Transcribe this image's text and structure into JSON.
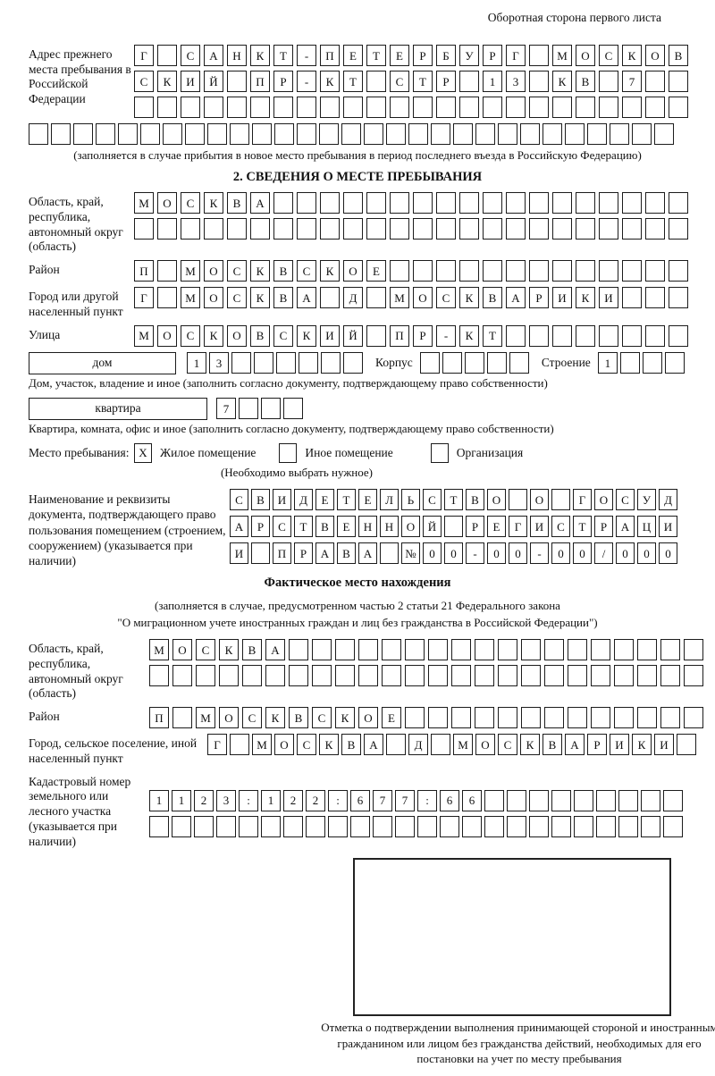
{
  "page": {
    "header_note": "Оборотная сторона первого листа"
  },
  "prev_address": {
    "label": "Адрес прежнего места пребывания в Российской Федерации",
    "rows": [
      "Г САНКТ-ПЕТЕРБУРГ МОСКОВ",
      "СКИЙ ПР-КТ СТР 13 КВ 7  ",
      "                        "
    ],
    "full_row": "                             ",
    "note": "(заполняется в случае прибытия в новое место пребывания в период последнего въезда в Российскую Федерацию)"
  },
  "section2": {
    "title": "2. СВЕДЕНИЯ О МЕСТЕ ПРЕБЫВАНИЯ",
    "region": {
      "label": "Область, край, республика, автономный округ (область)",
      "rows": [
        "МОСКВА                  ",
        "                        "
      ]
    },
    "district": {
      "label": "Район",
      "row": "П МОСКВСКОЕ             "
    },
    "city": {
      "label": "Город или другой населенный пункт",
      "row": "Г МОСКВА Д МОСКВАРИКИ   "
    },
    "street": {
      "label": "Улица",
      "row": "МОСКОВСКИЙ ПР-КТ        "
    },
    "house": {
      "box_label": "дом",
      "cells": "13      ",
      "korpus_label": "Корпус",
      "korpus_cells": "     ",
      "stroenie_label": "Строение",
      "stroenie_cells": "1   ",
      "note": "Дом, участок, владение и иное (заполнить согласно документу, подтверждающему право собственности)"
    },
    "apartment": {
      "box_label": "квартира",
      "cells": "7   ",
      "note": "Квартира, комната, офис и иное (заполнить согласно документу, подтверждающему право собственности)"
    },
    "stay_type": {
      "label": "Место пребывания:",
      "options": [
        {
          "label": "Жилое помещение",
          "checked": "X"
        },
        {
          "label": "Иное помещение",
          "checked": ""
        },
        {
          "label": "Организация",
          "checked": ""
        }
      ],
      "note": "(Необходимо выбрать нужное)"
    },
    "document": {
      "label": "Наименование и реквизиты документа, подтверждающего право пользования помещением (строением, сооружением) (указывается при наличии)",
      "rows": [
        "СВИДЕТЕЛЬСТВО О ГОСУД",
        "АРСТВЕННОЙ РЕГИСТРАЦИ",
        "И ПРАВА №00-00-00/000"
      ]
    }
  },
  "actual_location": {
    "title": "Фактическое место нахождения",
    "note_line1": "(заполняется в случае, предусмотренном частью 2 статьи 21 Федерального закона",
    "note_line2": "\"О миграционном учете иностранных граждан и лиц без гражданства в Российской Федерации\")",
    "region": {
      "label": "Область, край, республика, автономный округ (область)",
      "rows": [
        "МОСКВА                  ",
        "                        "
      ]
    },
    "district": {
      "label": "Район",
      "row": "П МОСКВСКОЕ             "
    },
    "city": {
      "label": "Город, сельское поселение, иной населенный пункт",
      "row": "Г МОСКВА Д МОСКВАРИКИ "
    },
    "cadastral": {
      "label": "Кадастровый номер земельного или лесного участка (указывается при наличии)",
      "rows": [
        "1123:122:677:66         ",
        "                        "
      ]
    }
  },
  "confirmation": {
    "note": "Отметка о подтверждении выполнения принимающей стороной и иностранным гражданином или лицом без гражданства действий, необходимых для его постановки на учет по месту пребывания"
  }
}
